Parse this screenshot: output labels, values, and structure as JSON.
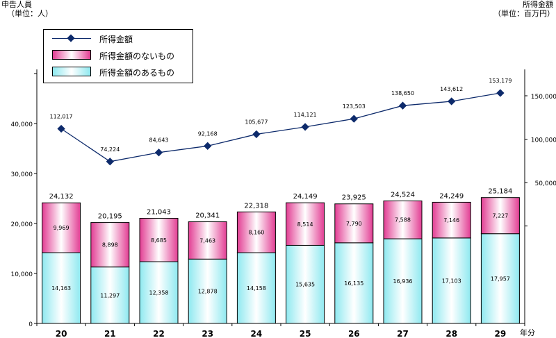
{
  "header": {
    "left_title": "申告人員",
    "left_unit": "（単位：人）",
    "right_title": "所得金額",
    "right_unit": "（単位：百万円）",
    "x_unit": "年分"
  },
  "legend": {
    "line_label": "所得金額",
    "pink_label": "所得金額のないもの",
    "cyan_label": "所得金額のあるもの"
  },
  "colors": {
    "line": "#0d2a6b",
    "pink_edge": "#e23d93",
    "cyan_edge": "#8fe9f0"
  },
  "chart_data": {
    "type": "bar",
    "categories": [
      "20",
      "21",
      "22",
      "23",
      "24",
      "25",
      "26",
      "27",
      "28",
      "29"
    ],
    "series": [
      {
        "name": "所得金額のあるもの",
        "values": [
          14163,
          11297,
          12358,
          12878,
          14158,
          15635,
          16135,
          16936,
          17103,
          17957
        ]
      },
      {
        "name": "所得金額のないもの",
        "values": [
          9969,
          8898,
          8685,
          7463,
          8160,
          8514,
          7790,
          7588,
          7146,
          7227
        ]
      }
    ],
    "totals": [
      24132,
      20195,
      21043,
      20341,
      22318,
      24149,
      23925,
      24524,
      24249,
      25184
    ],
    "line_series": {
      "name": "所得金額",
      "values": [
        112017,
        74224,
        84643,
        92168,
        105677,
        114121,
        123503,
        138650,
        143612,
        153179
      ]
    },
    "left_axis": {
      "ylim": [
        0,
        40000
      ],
      "ticks": [
        0,
        10000,
        20000,
        30000,
        40000
      ],
      "tick_labels": [
        "0",
        "10,000",
        "20,000",
        "30,000",
        "40,000"
      ]
    },
    "right_axis": {
      "ylim": [
        0,
        150000
      ],
      "ticks": [
        50000,
        100000,
        150000
      ],
      "tick_labels": [
        "50,000",
        "100,000",
        "150,000"
      ]
    }
  }
}
